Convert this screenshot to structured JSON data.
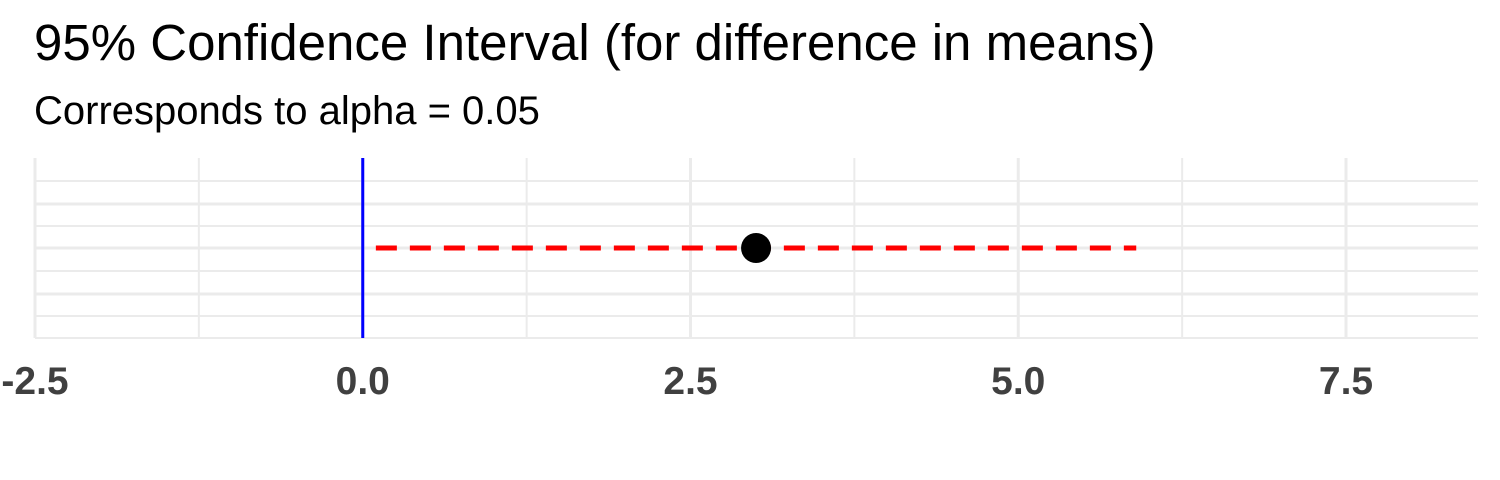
{
  "chart_data": {
    "type": "scatter",
    "title": "95% Confidence Interval (for difference in means)",
    "subtitle": "Corresponds to alpha = 0.05",
    "xlabel": "",
    "ylabel": "",
    "xlim": [
      -2.5,
      8.5
    ],
    "x_ticks": [
      "-2.5",
      "0.0",
      "2.5",
      "5.0",
      "7.5"
    ],
    "x_tick_values": [
      -2.5,
      0.0,
      2.5,
      5.0,
      7.5
    ],
    "point_estimate": 3.0,
    "interval": {
      "lower": 0.1,
      "upper": 5.9
    },
    "reference_line": 0.0,
    "grid": true,
    "colors": {
      "point": "#000000",
      "interval": "#ff0000",
      "reference_line": "#0000ff",
      "grid": "#ebebeb",
      "tick_label": "#404040"
    }
  }
}
